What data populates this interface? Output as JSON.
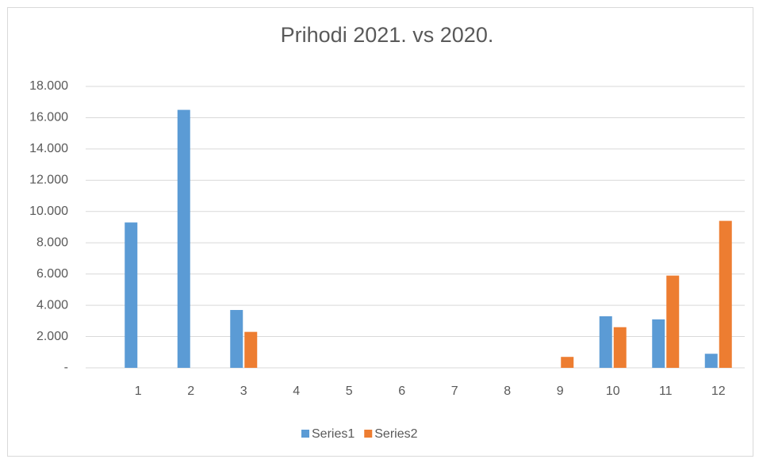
{
  "chart_data": {
    "type": "bar",
    "title": "Prihodi 2021. vs 2020.",
    "categories": [
      "1",
      "2",
      "3",
      "4",
      "5",
      "6",
      "7",
      "8",
      "9",
      "10",
      "11",
      "12"
    ],
    "series": [
      {
        "name": "Series1",
        "color": "#5b9bd5",
        "values": [
          9300,
          16500,
          3700,
          0,
          0,
          0,
          0,
          0,
          0,
          3300,
          3100,
          900
        ]
      },
      {
        "name": "Series2",
        "color": "#ed7d31",
        "values": [
          0,
          0,
          2300,
          0,
          0,
          0,
          0,
          0,
          700,
          2600,
          5900,
          9400
        ]
      }
    ],
    "ylim": [
      0,
      18000
    ],
    "yticks": [
      {
        "value": 0,
        "label": "-"
      },
      {
        "value": 2000,
        "label": "2.000"
      },
      {
        "value": 4000,
        "label": "4.000"
      },
      {
        "value": 6000,
        "label": "6.000"
      },
      {
        "value": 8000,
        "label": "8.000"
      },
      {
        "value": 10000,
        "label": "10.000"
      },
      {
        "value": 12000,
        "label": "12.000"
      },
      {
        "value": 14000,
        "label": "14.000"
      },
      {
        "value": 16000,
        "label": "16.000"
      },
      {
        "value": 18000,
        "label": "18.000"
      }
    ],
    "grid": true,
    "legend": "bottom"
  }
}
